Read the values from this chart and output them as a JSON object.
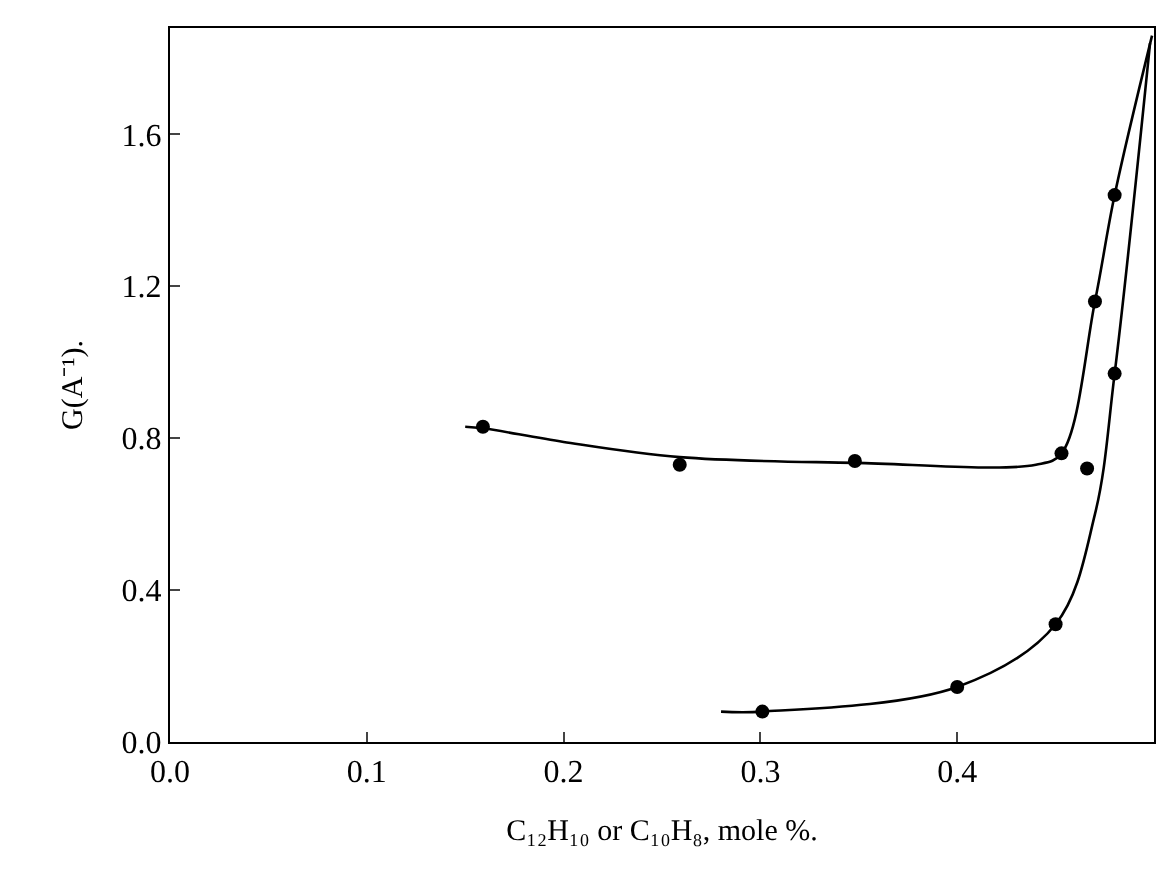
{
  "chart_data": {
    "type": "line",
    "xlabel": "C₁₂H₁₀ or C₁₀H₈, mole %.",
    "ylabel": "G(A⁻¹).",
    "xlim": [
      0,
      0.5
    ],
    "ylim": [
      0,
      1.88
    ],
    "xticks": [
      {
        "value": 0,
        "label": "0.0"
      },
      {
        "value": 0.1,
        "label": "0.1"
      },
      {
        "value": 0.2,
        "label": "0.2"
      },
      {
        "value": 0.3,
        "label": "0.3"
      },
      {
        "value": 0.4,
        "label": "0.4"
      }
    ],
    "yticks": [
      {
        "value": 0,
        "label": "0.0"
      },
      {
        "value": 0.4,
        "label": "0.4"
      },
      {
        "value": 0.8,
        "label": "0.8"
      },
      {
        "value": 1.2,
        "label": "1.2"
      },
      {
        "value": 1.6,
        "label": "1.6"
      }
    ],
    "series": [
      {
        "marker": "none",
        "color": "#000000",
        "x": [
          0.15,
          0.159,
          0.2,
          0.259,
          0.348,
          0.44,
          0.453,
          0.47,
          0.48,
          0.499
        ],
        "values": [
          0.83,
          0.826,
          0.79,
          0.75,
          0.735,
          0.73,
          0.76,
          1.16,
          1.44,
          1.86
        ]
      },
      {
        "marker": "none",
        "color": "#000000",
        "x": [
          0.28,
          0.301,
          0.4,
          0.45,
          0.47,
          0.48,
          0.498
        ],
        "values": [
          0.08,
          0.08,
          0.145,
          0.31,
          0.6,
          0.97,
          1.84
        ]
      },
      {
        "type": "scatter",
        "marker": "circle",
        "color": "#000000",
        "x": [
          0.159,
          0.259,
          0.348,
          0.453,
          0.47,
          0.48
        ],
        "values": [
          0.83,
          0.73,
          0.74,
          0.76,
          1.16,
          1.44
        ]
      },
      {
        "type": "scatter",
        "marker": "circle",
        "color": "#000000",
        "x": [
          0.301,
          0.4,
          0.45,
          0.48,
          0.466
        ],
        "values": [
          0.08,
          0.145,
          0.31,
          0.97,
          0.72
        ]
      }
    ]
  }
}
